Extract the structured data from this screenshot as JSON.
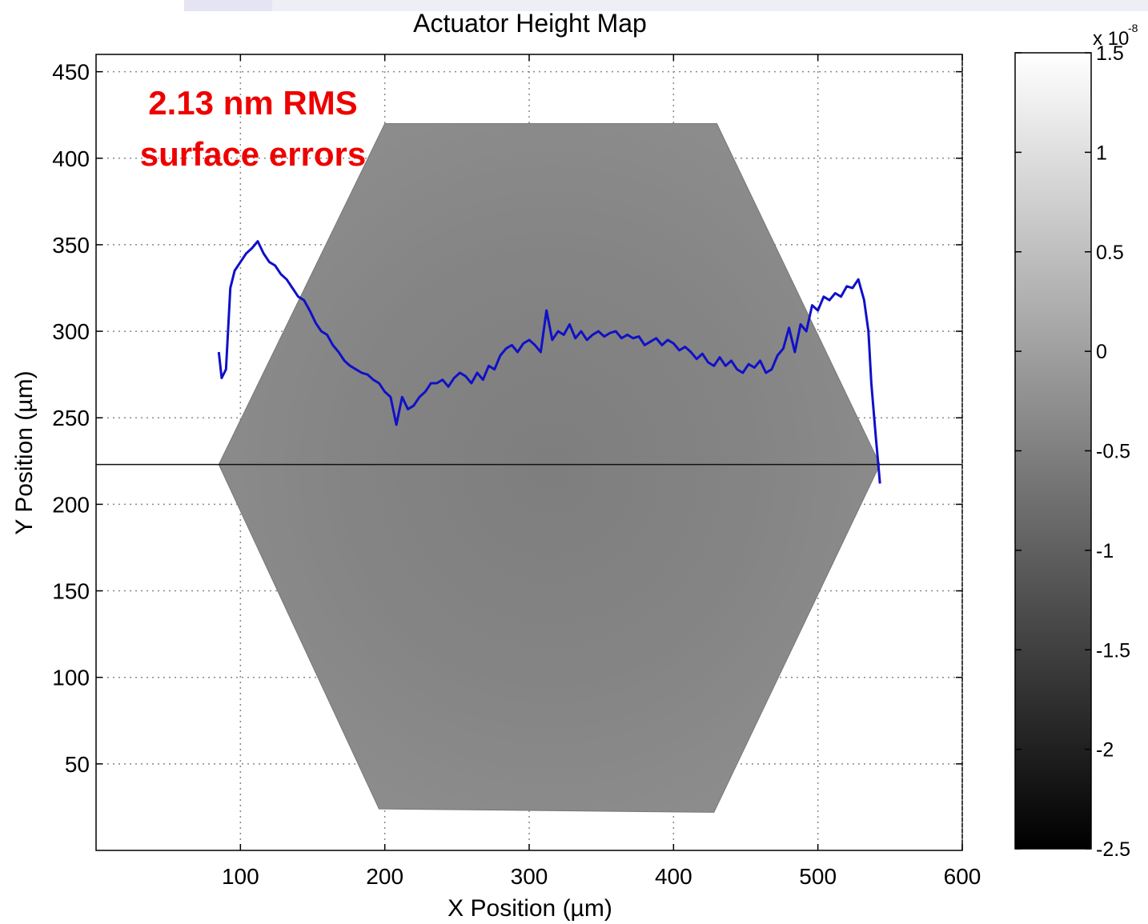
{
  "chart_data": {
    "type": "heatmap",
    "title": "Actuator Height Map",
    "xlabel": "X Position (µm)",
    "ylabel": "Y Position (µm)",
    "xlim": [
      0,
      600
    ],
    "ylim": [
      0,
      460
    ],
    "x_ticks": [
      100,
      200,
      300,
      400,
      500,
      600
    ],
    "y_ticks": [
      50,
      100,
      150,
      200,
      250,
      300,
      350,
      400,
      450
    ],
    "grid": true,
    "hexagon_vertices": [
      [
        200,
        420
      ],
      [
        430,
        420
      ],
      [
        543,
        223
      ],
      [
        428,
        22
      ],
      [
        196,
        24
      ],
      [
        85,
        223
      ]
    ],
    "reference_line_y": 223,
    "profile_line": {
      "color": "#1010c8",
      "x": [
        85,
        87,
        90,
        93,
        96,
        100,
        104,
        108,
        112,
        116,
        120,
        124,
        128,
        132,
        136,
        140,
        144,
        148,
        152,
        156,
        160,
        164,
        168,
        172,
        176,
        180,
        184,
        188,
        192,
        196,
        200,
        204,
        208,
        212,
        216,
        220,
        224,
        228,
        232,
        236,
        240,
        244,
        248,
        252,
        256,
        260,
        264,
        268,
        272,
        276,
        280,
        284,
        288,
        292,
        296,
        300,
        304,
        308,
        312,
        316,
        320,
        324,
        328,
        332,
        336,
        340,
        344,
        348,
        352,
        356,
        360,
        364,
        368,
        372,
        376,
        380,
        384,
        388,
        392,
        396,
        400,
        404,
        408,
        412,
        416,
        420,
        424,
        428,
        432,
        436,
        440,
        444,
        448,
        452,
        456,
        460,
        464,
        468,
        472,
        476,
        480,
        484,
        488,
        492,
        496,
        500,
        504,
        508,
        512,
        516,
        520,
        524,
        528,
        532,
        535,
        537,
        540,
        543
      ],
      "y": [
        288,
        273,
        278,
        325,
        335,
        340,
        345,
        348,
        352,
        345,
        340,
        338,
        333,
        330,
        325,
        320,
        318,
        312,
        305,
        300,
        298,
        292,
        288,
        283,
        280,
        278,
        276,
        275,
        272,
        270,
        265,
        262,
        246,
        262,
        255,
        257,
        262,
        265,
        270,
        270,
        272,
        268,
        273,
        276,
        274,
        270,
        276,
        272,
        280,
        278,
        286,
        290,
        292,
        288,
        293,
        295,
        292,
        288,
        312,
        295,
        300,
        298,
        304,
        296,
        300,
        295,
        298,
        300,
        297,
        299,
        300,
        296,
        298,
        296,
        297,
        292,
        294,
        296,
        292,
        295,
        293,
        289,
        291,
        288,
        284,
        287,
        282,
        280,
        285,
        280,
        283,
        278,
        276,
        281,
        279,
        283,
        276,
        278,
        286,
        290,
        302,
        288,
        304,
        300,
        315,
        312,
        320,
        318,
        322,
        320,
        326,
        325,
        330,
        318,
        300,
        270,
        240,
        212
      ]
    },
    "annotation": {
      "lines": [
        "2.13 nm RMS",
        "surface errors"
      ],
      "color": "#ee0000"
    },
    "colorbar": {
      "range": [
        -2.5,
        1.5
      ],
      "ticks": [
        "1.5",
        "1",
        "0.5",
        "0",
        "-0.5",
        "-1",
        "-1.5",
        "-2",
        "-2.5"
      ],
      "multiplier_base": "x 10",
      "multiplier_exp": "-8"
    }
  }
}
